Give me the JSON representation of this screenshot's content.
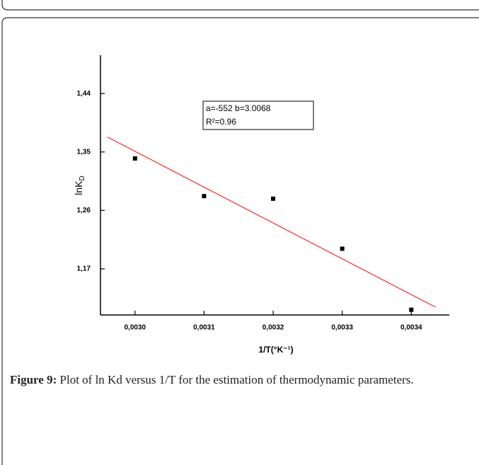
{
  "chart_data": {
    "type": "scatter",
    "x": [
      0.003,
      0.0031,
      0.0032,
      0.0033,
      0.0034
    ],
    "values": [
      1.34,
      1.282,
      1.278,
      1.201,
      1.107
    ],
    "color": "#000000",
    "fit": {
      "x": [
        0.00296,
        0.003435
      ],
      "values": [
        1.373,
        1.111
      ],
      "color": "#ff0000"
    },
    "xlim": [
      0.00295,
      0.003455
    ],
    "ylim": [
      1.099,
      1.499
    ],
    "xticks": [
      {
        "value": 0.003,
        "label": "0,0030"
      },
      {
        "value": 0.0031,
        "label": "0,0031"
      },
      {
        "value": 0.0032,
        "label": "0,0032"
      },
      {
        "value": 0.0033,
        "label": "0,0033"
      },
      {
        "value": 0.0034,
        "label": "0,0034"
      }
    ],
    "yticks": [
      {
        "value": 1.17,
        "label": "1,17"
      },
      {
        "value": 1.26,
        "label": "1,26"
      },
      {
        "value": 1.35,
        "label": "1,35"
      },
      {
        "value": 1.44,
        "label": "1,44"
      }
    ],
    "x_label": "1/T(°K⁻¹)",
    "y_label": "lnK",
    "y_label_sub": "D",
    "annotation": [
      "a=-552  b=3.0068",
      "R²=0.96"
    ]
  },
  "caption": {
    "label": "Figure 9:",
    "text": "Plot of ln Kd versus 1/T for the estimation of thermodynamic parameters."
  }
}
